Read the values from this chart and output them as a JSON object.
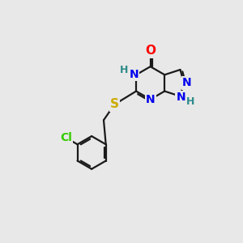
{
  "bg_color": "#e8e8e8",
  "bond_color": "#1a1a1a",
  "atom_colors": {
    "O": "#ff0000",
    "N": "#0000ee",
    "S": "#ccaa00",
    "Cl": "#33cc00",
    "H_label": "#2e8b8b",
    "C": "#1a1a1a"
  },
  "font_size_atoms": 10,
  "font_size_h": 9,
  "lw": 1.6
}
